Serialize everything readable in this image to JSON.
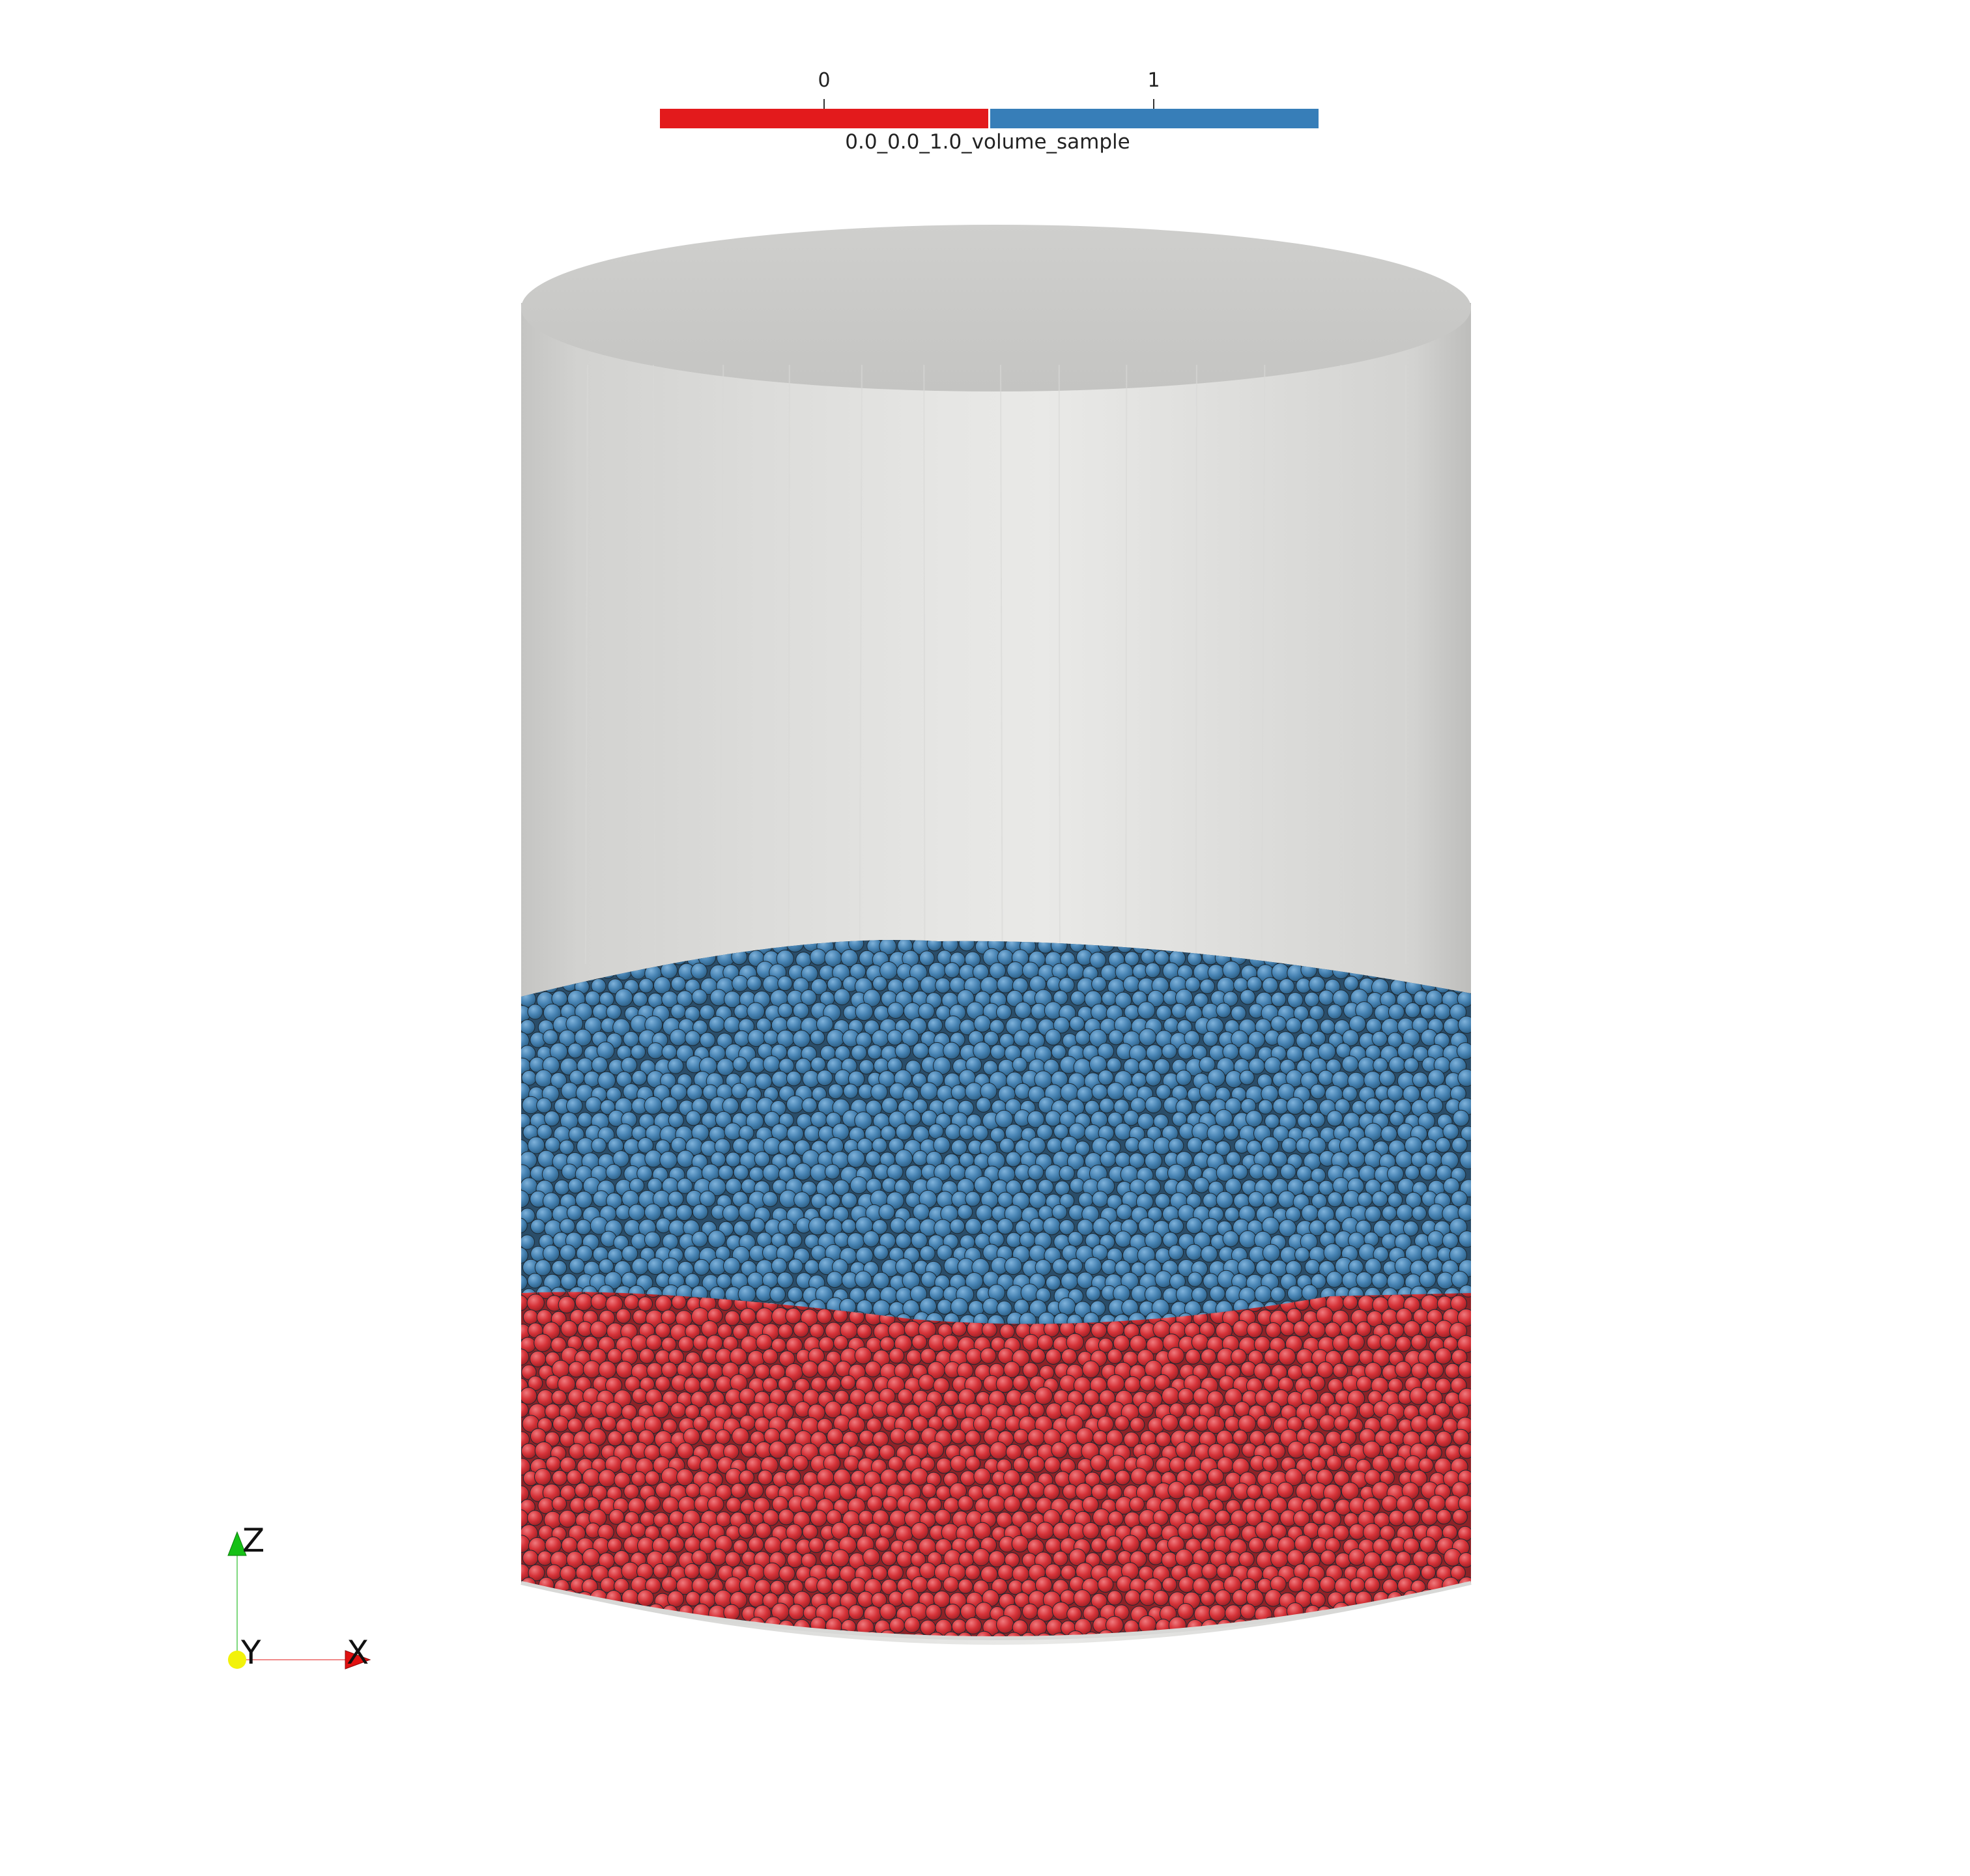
{
  "colorbar": {
    "title": "0.0_0.0_1.0_volume_sample",
    "tick_labels": [
      "0",
      "1"
    ],
    "colors": [
      "#e31a1c",
      "#377eb8"
    ]
  },
  "scene": {
    "container": "transparent-cylinder",
    "particle_layers": [
      {
        "value": "0",
        "color": "#d63339"
      },
      {
        "value": "1",
        "color": "#4783b3"
      }
    ]
  },
  "orientation_axes": {
    "z_label": "Z",
    "y_label": "Y",
    "x_label": "X",
    "colors": {
      "x": "#e11111",
      "y": "#f2f20a",
      "z": "#16c016"
    }
  }
}
